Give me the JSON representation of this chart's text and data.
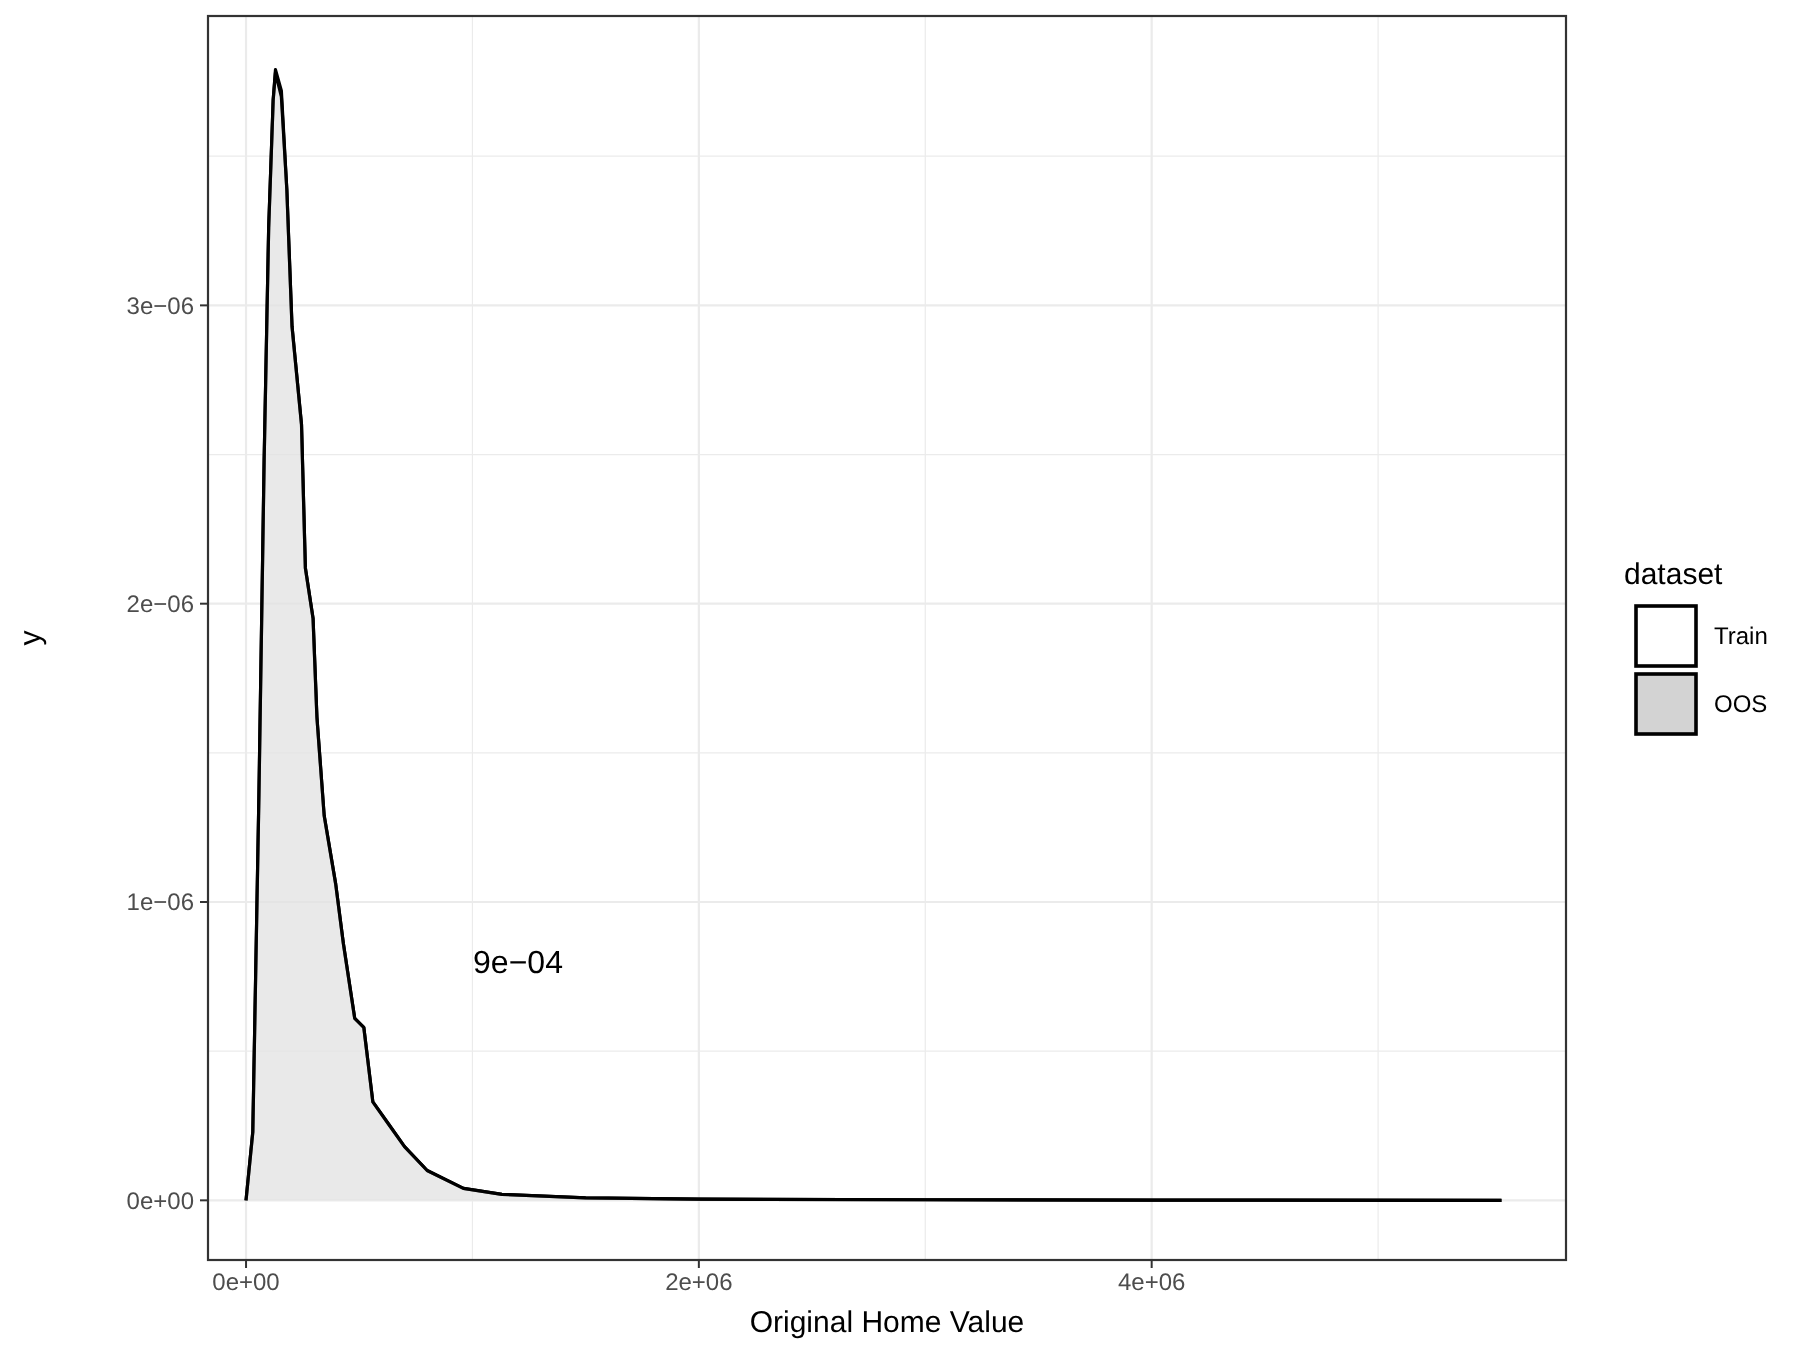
{
  "chart_data": {
    "type": "area",
    "xlabel": "Original Home Value",
    "ylabel": "y",
    "legend_title": "dataset",
    "x": [
      0,
      30000,
      57000,
      80000,
      100000,
      120000,
      130000,
      156000,
      180000,
      203000,
      245000,
      262000,
      296000,
      313000,
      345000,
      396000,
      430000,
      480000,
      520000,
      560000,
      630000,
      700000,
      800000,
      960000,
      1130000,
      1500000,
      2000000,
      3000000,
      4000000,
      5545000
    ],
    "series": [
      {
        "name": "Train",
        "color": "#ffffff",
        "values": [
          0,
          2.3e-07,
          1.36e-06,
          2.48e-06,
          3.26e-06,
          3.69e-06,
          3.79e-06,
          3.72e-06,
          3.39e-06,
          2.93e-06,
          2.6e-06,
          2.12e-06,
          1.95e-06,
          1.62e-06,
          1.29e-06,
          1.06e-06,
          8.6e-07,
          6.1e-07,
          5.8e-07,
          3.3e-07,
          2.55e-07,
          1.8e-07,
          1e-07,
          4e-08,
          2e-08,
          8e-09,
          4e-09,
          2e-09,
          1e-09,
          0
        ]
      },
      {
        "name": "OOS",
        "color": "#d3d3d3",
        "values": [
          0,
          2.3e-07,
          1.36e-06,
          2.48e-06,
          3.26e-06,
          3.69e-06,
          3.78e-06,
          3.7e-06,
          3.39e-06,
          2.93e-06,
          2.6e-06,
          2.12e-06,
          1.95e-06,
          1.62e-06,
          1.29e-06,
          1.06e-06,
          8.6e-07,
          6.1e-07,
          5.8e-07,
          3.3e-07,
          2.55e-07,
          1.8e-07,
          1e-07,
          4e-08,
          2e-08,
          8e-09,
          4e-09,
          2e-09,
          1e-09,
          0
        ]
      }
    ],
    "xlim": [
      -168000,
      5830000
    ],
    "ylim": [
      -2e-07,
      3.97e-06
    ],
    "xticks": [
      {
        "value": 0,
        "label": "0e+00"
      },
      {
        "value": 1000000,
        "label": null
      },
      {
        "value": 2000000,
        "label": "2e+06"
      },
      {
        "value": 3000000,
        "label": null
      },
      {
        "value": 4000000,
        "label": "4e+06"
      },
      {
        "value": 5000000,
        "label": null
      }
    ],
    "yticks": [
      {
        "value": 0,
        "label": "0e+00"
      },
      {
        "value": 5e-07,
        "label": null
      },
      {
        "value": 1e-06,
        "label": "1e−06"
      },
      {
        "value": 1.5e-06,
        "label": null
      },
      {
        "value": 2e-06,
        "label": "2e−06"
      },
      {
        "value": 2.5e-06,
        "label": null
      },
      {
        "value": 3e-06,
        "label": "3e−06"
      },
      {
        "value": 3.5e-06,
        "label": null
      }
    ],
    "grid": true,
    "legend": "right",
    "annotations": [
      "9e−04"
    ]
  }
}
